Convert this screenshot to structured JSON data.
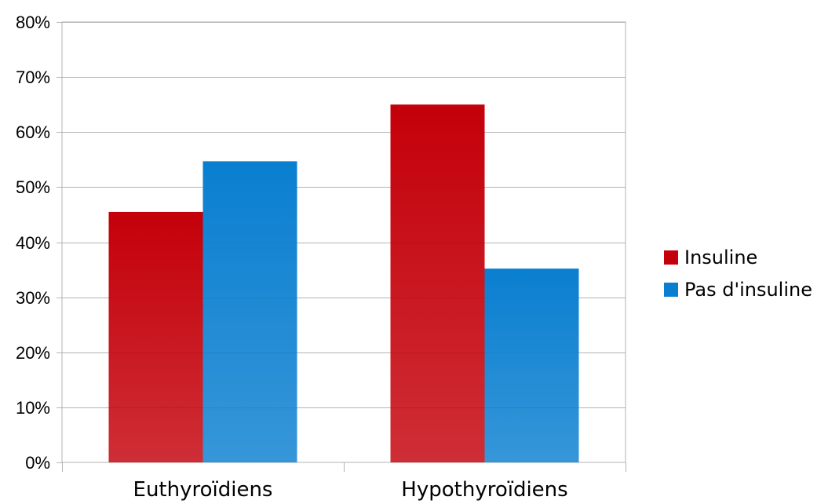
{
  "chart_data": {
    "type": "bar",
    "categories": [
      "Euthyroïdiens",
      "Hypothyroïdiens"
    ],
    "series": [
      {
        "name": "Insuline",
        "values": [
          45.5,
          65
        ],
        "color": "#c4000a"
      },
      {
        "name": "Pas d'insuline",
        "values": [
          54.7,
          35.2
        ],
        "color": "#0a7fd0"
      }
    ],
    "ylim": [
      0,
      80
    ],
    "yticks": [
      "0%",
      "10%",
      "20%",
      "30%",
      "40%",
      "50%",
      "60%",
      "70%",
      "80%"
    ],
    "y_tick_values": [
      0,
      10,
      20,
      30,
      40,
      50,
      60,
      70,
      80
    ],
    "grid": true,
    "legend_position": "right"
  }
}
